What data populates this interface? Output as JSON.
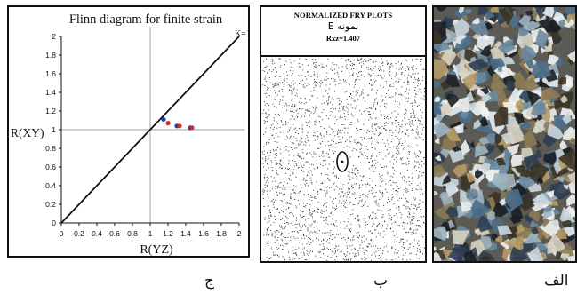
{
  "chart_data": {
    "type": "scatter",
    "title": "Flinn diagram for finite strain",
    "xlabel": "R(YZ)",
    "ylabel": "R(XY)",
    "xlim": [
      0,
      2
    ],
    "ylim": [
      0,
      2
    ],
    "x_ticks": [
      "0",
      "0.2",
      "0.4",
      "0.6",
      "0.8",
      "1",
      "1.2",
      "1.4",
      "1.6",
      "1.8",
      "2"
    ],
    "y_ticks": [
      "0",
      "0.2",
      "0.4",
      "0.6",
      "0.8",
      "1",
      "1.2",
      "1.4",
      "1.6",
      "1.8",
      "2"
    ],
    "reference_line": {
      "label": "K=1",
      "from": [
        0,
        0
      ],
      "to": [
        2,
        2
      ]
    },
    "crosshair": {
      "x": 1,
      "y": 1
    },
    "points": [
      {
        "x": 1.15,
        "y": 1.11,
        "color": "#1f3fa8"
      },
      {
        "x": 1.2,
        "y": 1.07,
        "color": "#d42a2a"
      },
      {
        "x": 1.3,
        "y": 1.04,
        "color": "#1f3fa8"
      },
      {
        "x": 1.33,
        "y": 1.04,
        "color": "#d42a2a"
      },
      {
        "x": 1.45,
        "y": 1.02,
        "color": "#1f3fa8"
      },
      {
        "x": 1.47,
        "y": 1.02,
        "color": "#d42a2a"
      }
    ]
  },
  "fry": {
    "title": "NORMALIZED FRY PLOTS",
    "sample": "نمونه E",
    "ratio": "Rxz=1.407"
  },
  "captions": {
    "alef": "الف",
    "be": "ب",
    "jim": "ج"
  },
  "colors": {
    "point_blue": "#1f3fa8",
    "point_red": "#d42a2a",
    "axis": "#111111",
    "crosshair": "#a0a0a0"
  }
}
